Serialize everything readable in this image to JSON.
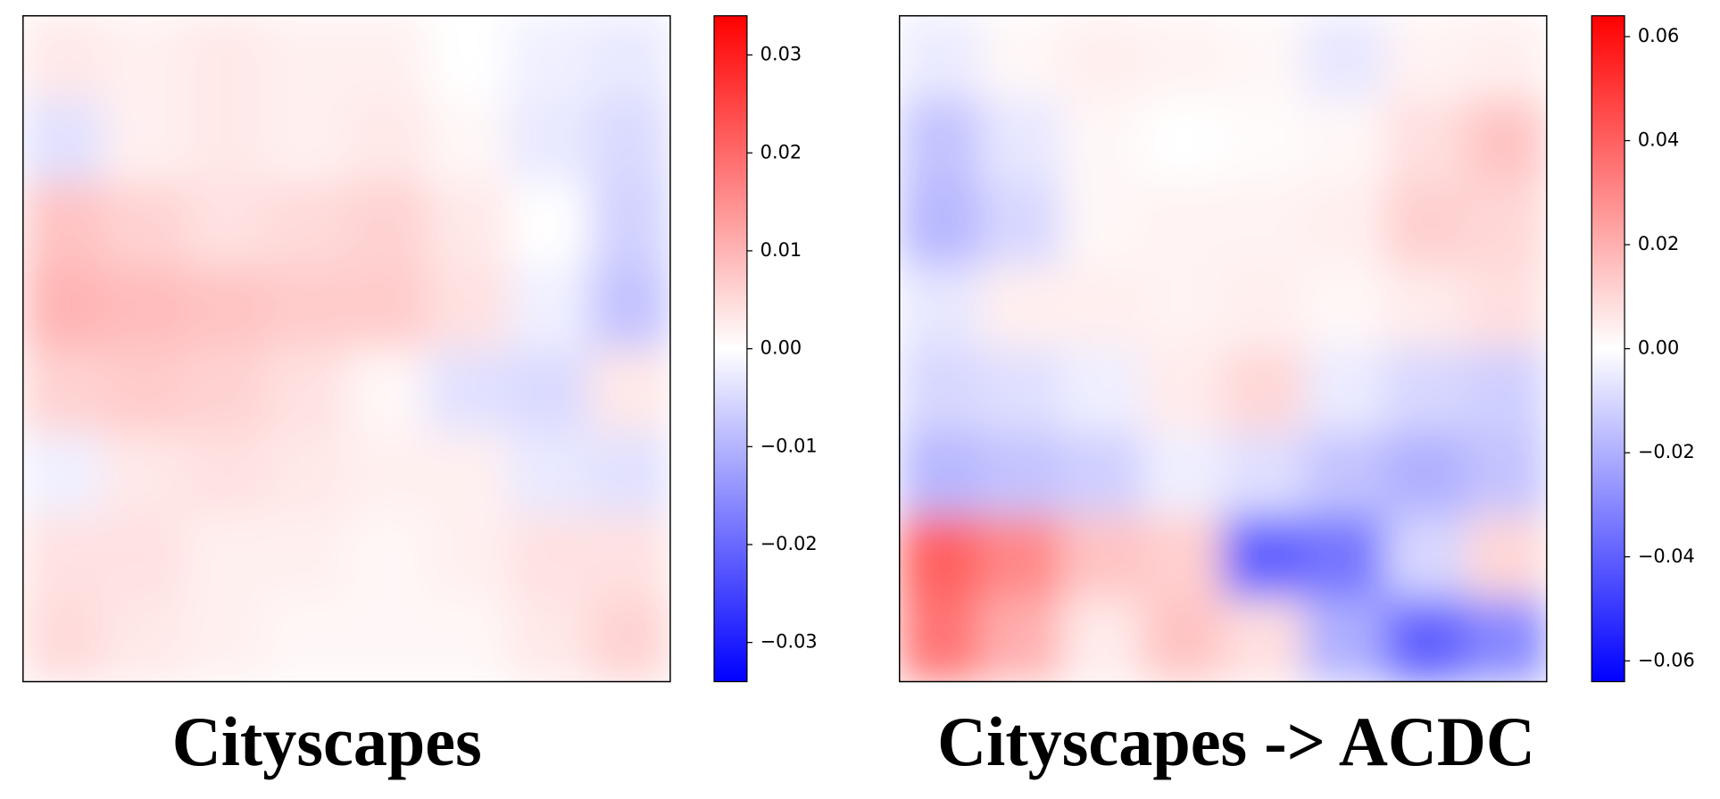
{
  "chart_data": [
    {
      "type": "heatmap",
      "title": "Cityscapes",
      "colors": [
        "#0000ff",
        "#ffffff",
        "#ff0000"
      ],
      "ylim": [
        -0.034,
        0.034
      ],
      "yticks": [
        {
          "value": -0.03,
          "label": "−0.03"
        },
        {
          "value": -0.02,
          "label": "−0.02"
        },
        {
          "value": -0.01,
          "label": "−0.01"
        },
        {
          "value": 0,
          "label": "0.00"
        },
        0.01,
        0.02,
        0.03
      ],
      "values": [
        [
          0.003,
          0.002,
          0.003,
          0.002,
          0.002,
          0,
          -0.002,
          -0.003
        ],
        [
          -0.004,
          0.002,
          0.003,
          0.002,
          0.003,
          0.001,
          -0.003,
          -0.005
        ],
        [
          0.008,
          0.006,
          0.004,
          0.005,
          0.006,
          0.003,
          0,
          -0.006
        ],
        [
          0.01,
          0.009,
          0.008,
          0.007,
          0.007,
          0.004,
          -0.002,
          -0.008
        ],
        [
          0.006,
          0.007,
          0.006,
          0.004,
          0.001,
          -0.004,
          -0.005,
          0.003
        ],
        [
          -0.002,
          0.003,
          0.004,
          0.003,
          0.002,
          0.002,
          -0.003,
          -0.004
        ],
        [
          0.004,
          0.004,
          0.002,
          0.002,
          0.001,
          0.002,
          0.004,
          0.004
        ],
        [
          0.005,
          0.003,
          0.002,
          0.001,
          0.001,
          0.001,
          0.003,
          0.006
        ]
      ]
    },
    {
      "type": "heatmap",
      "title": "Cityscapes -> ACDC",
      "colors": [
        "#0000ff",
        "#ffffff",
        "#ff0000"
      ],
      "ylim": [
        -0.064,
        0.064
      ],
      "yticks": [
        {
          "value": -0.06,
          "label": "−0.06"
        },
        {
          "value": -0.04,
          "label": "−0.04"
        },
        {
          "value": -0.02,
          "label": "−0.02"
        },
        {
          "value": 0,
          "label": "0.00"
        },
        0.02,
        0.04,
        0.06
      ],
      "values": [
        [
          -0.005,
          0.002,
          0.004,
          0.003,
          0.002,
          -0.006,
          0.003,
          0.004
        ],
        [
          -0.015,
          -0.006,
          0.002,
          0,
          0.001,
          0.002,
          0.008,
          0.015
        ],
        [
          -0.018,
          -0.01,
          0.002,
          0.003,
          0.003,
          0.004,
          0.012,
          0.01
        ],
        [
          -0.006,
          0.004,
          0.004,
          0.003,
          0.004,
          0.002,
          0.005,
          0.008
        ],
        [
          -0.01,
          -0.008,
          -0.004,
          0.005,
          0.01,
          -0.005,
          -0.01,
          -0.012
        ],
        [
          -0.018,
          -0.015,
          -0.012,
          -0.004,
          -0.008,
          -0.015,
          -0.02,
          -0.015
        ],
        [
          0.04,
          0.03,
          0.015,
          0.012,
          -0.04,
          -0.035,
          -0.01,
          0.01
        ],
        [
          0.035,
          0.02,
          0.005,
          0.015,
          0.008,
          -0.02,
          -0.04,
          -0.03
        ]
      ]
    }
  ]
}
